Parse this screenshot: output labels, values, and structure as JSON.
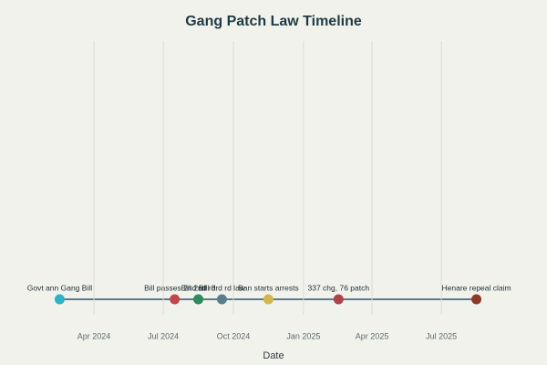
{
  "chart_data": {
    "type": "timeline",
    "title": "Gang Patch Law Timeline",
    "x_label": "Date",
    "x": [
      "2024-02",
      "2024-07",
      "2024-08",
      "2024-09",
      "2024-11",
      "2025-02",
      "2025-08"
    ],
    "labels": [
      "Govt ann Gang Bill",
      "Bill passes 2nd rd",
      "Bill 2nd rd",
      "Bill 3rd rd law",
      "Ban starts arrests",
      "337 chg, 76 patch",
      "Henare repeal claim"
    ],
    "colors": [
      "#2bb3c6",
      "#c4454c",
      "#2f8a5a",
      "#5b7d8c",
      "#d2b84c",
      "#b0434a",
      "#8c3a28"
    ],
    "line_color": "#5d7b8a",
    "xlim": [
      "2024-01",
      "2025-10"
    ],
    "xticks": [
      {
        "value": "2024-04",
        "label": "Apr 2024"
      },
      {
        "value": "2024-07",
        "label": "Jul 2024"
      },
      {
        "value": "2024-10",
        "label": "Oct 2024"
      },
      {
        "value": "2025-01",
        "label": "Jan 2025"
      },
      {
        "value": "2025-04",
        "label": "Apr 2025"
      },
      {
        "value": "2025-07",
        "label": "Jul 2025"
      }
    ],
    "grid": true
  }
}
